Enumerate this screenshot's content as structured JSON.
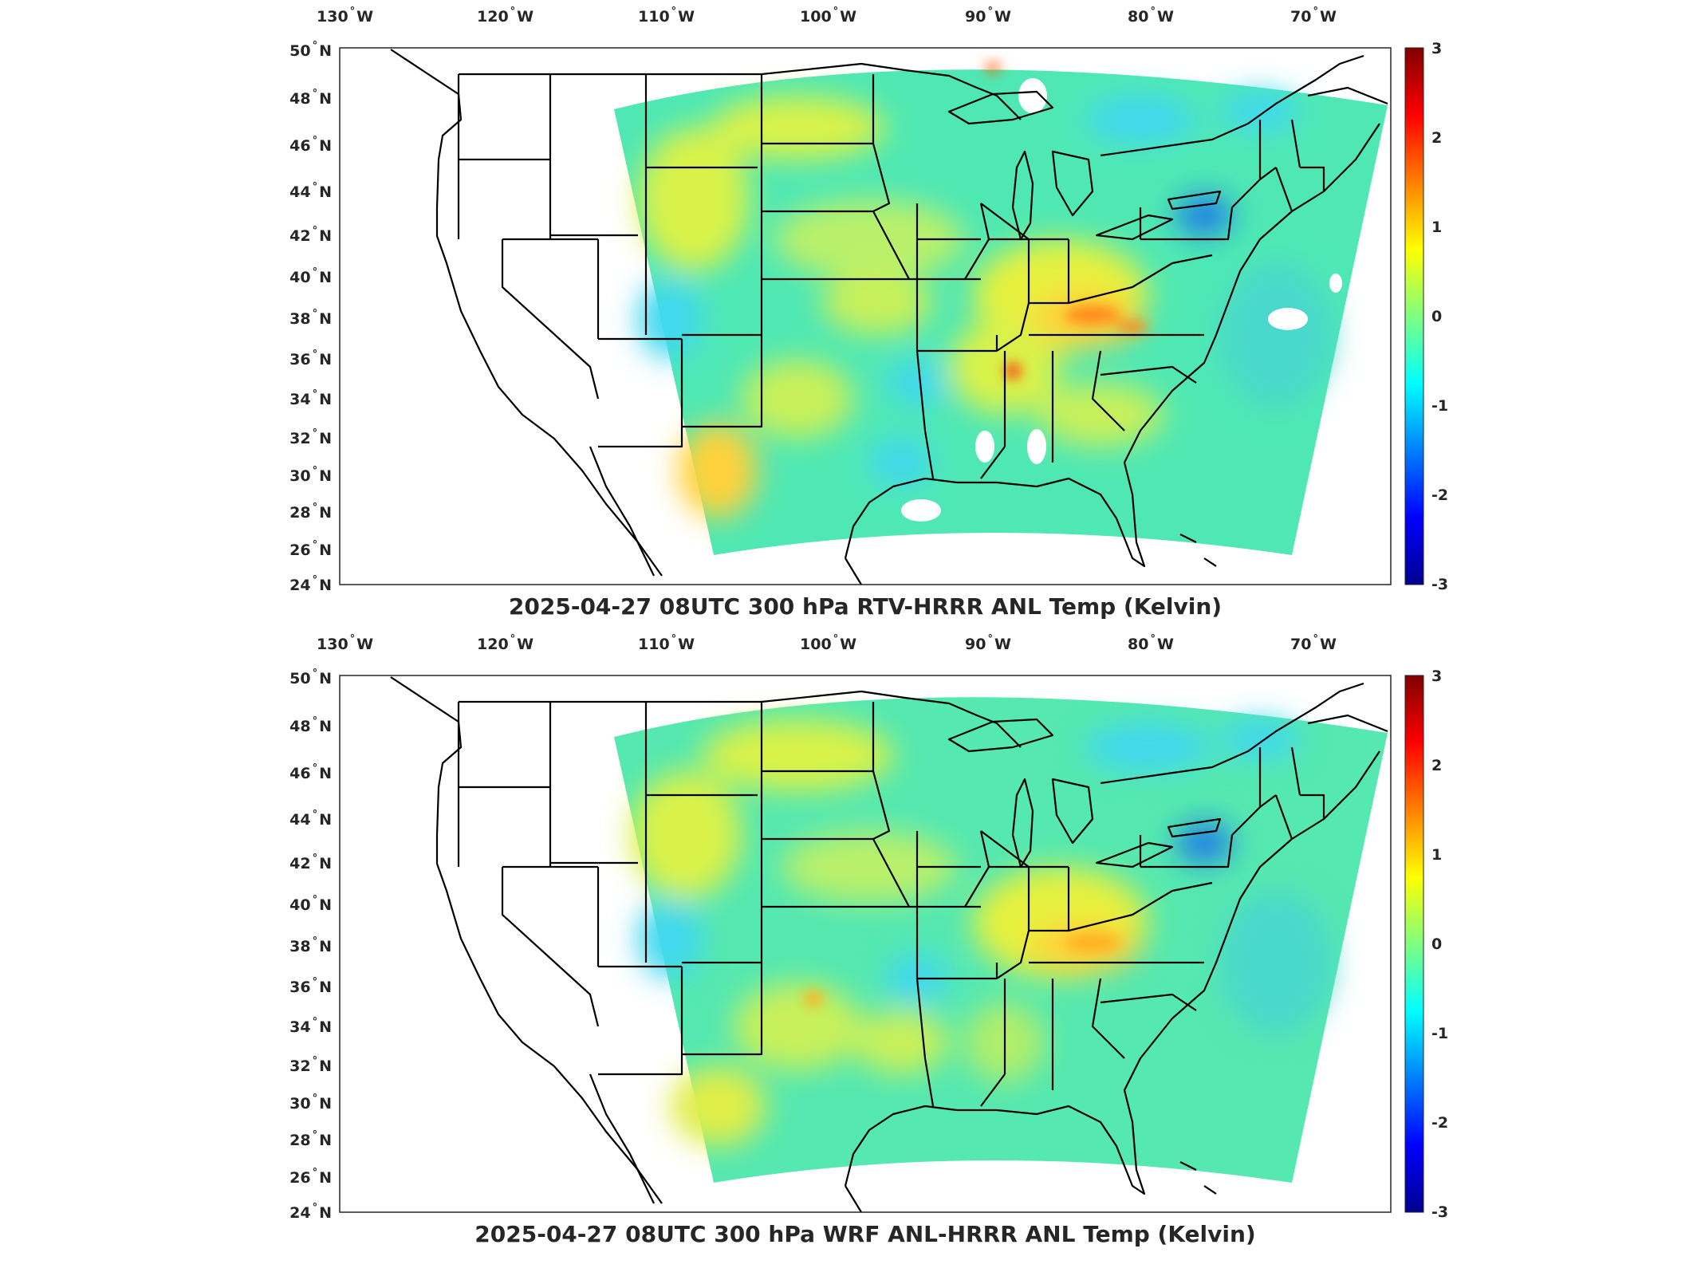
{
  "panels": [
    {
      "id": "top",
      "title": "2025-04-27 08UTC 300 hPa RTV-HRRR ANL Temp (Kelvin)",
      "lon_labels": [
        {
          "num": "130",
          "hem": "W"
        },
        {
          "num": "120",
          "hem": "W"
        },
        {
          "num": "110",
          "hem": "W"
        },
        {
          "num": "100",
          "hem": "W"
        },
        {
          "num": "90",
          "hem": "W"
        },
        {
          "num": "80",
          "hem": "W"
        },
        {
          "num": "70",
          "hem": "W"
        }
      ],
      "lat_labels": [
        {
          "num": "50",
          "hem": "N"
        },
        {
          "num": "48",
          "hem": "N"
        },
        {
          "num": "46",
          "hem": "N"
        },
        {
          "num": "44",
          "hem": "N"
        },
        {
          "num": "42",
          "hem": "N"
        },
        {
          "num": "40",
          "hem": "N"
        },
        {
          "num": "38",
          "hem": "N"
        },
        {
          "num": "36",
          "hem": "N"
        },
        {
          "num": "34",
          "hem": "N"
        },
        {
          "num": "32",
          "hem": "N"
        },
        {
          "num": "30",
          "hem": "N"
        },
        {
          "num": "28",
          "hem": "N"
        },
        {
          "num": "26",
          "hem": "N"
        },
        {
          "num": "24",
          "hem": "N"
        }
      ],
      "colorbar_ticks": [
        "3",
        "2",
        "1",
        "0",
        "-1",
        "-2",
        "-3"
      ]
    },
    {
      "id": "bottom",
      "title": "2025-04-27 08UTC 300 hPa WRF ANL-HRRR ANL Temp (Kelvin)",
      "lon_labels": [
        {
          "num": "130",
          "hem": "W"
        },
        {
          "num": "120",
          "hem": "W"
        },
        {
          "num": "110",
          "hem": "W"
        },
        {
          "num": "100",
          "hem": "W"
        },
        {
          "num": "90",
          "hem": "W"
        },
        {
          "num": "80",
          "hem": "W"
        },
        {
          "num": "70",
          "hem": "W"
        }
      ],
      "lat_labels": [
        {
          "num": "50",
          "hem": "N"
        },
        {
          "num": "48",
          "hem": "N"
        },
        {
          "num": "46",
          "hem": "N"
        },
        {
          "num": "44",
          "hem": "N"
        },
        {
          "num": "42",
          "hem": "N"
        },
        {
          "num": "40",
          "hem": "N"
        },
        {
          "num": "38",
          "hem": "N"
        },
        {
          "num": "36",
          "hem": "N"
        },
        {
          "num": "34",
          "hem": "N"
        },
        {
          "num": "32",
          "hem": "N"
        },
        {
          "num": "30",
          "hem": "N"
        },
        {
          "num": "28",
          "hem": "N"
        },
        {
          "num": "26",
          "hem": "N"
        },
        {
          "num": "24",
          "hem": "N"
        }
      ],
      "colorbar_ticks": [
        "3",
        "2",
        "1",
        "0",
        "-1",
        "-2",
        "-3"
      ]
    }
  ],
  "colormap": {
    "name": "jet",
    "range": [
      -3,
      3
    ],
    "stops": [
      "#00008f",
      "#0000ff",
      "#00ffff",
      "#7fff7f",
      "#ffff00",
      "#ff0000",
      "#800000"
    ]
  },
  "field_colors": {
    "background": "#4fe8b4",
    "warm": "#d9f24a",
    "warmer": "#ffd23a",
    "hot": "#ff8a1a",
    "cool": "#3fd8f0",
    "cold": "#1e78e6",
    "missing": "#ffffff"
  }
}
